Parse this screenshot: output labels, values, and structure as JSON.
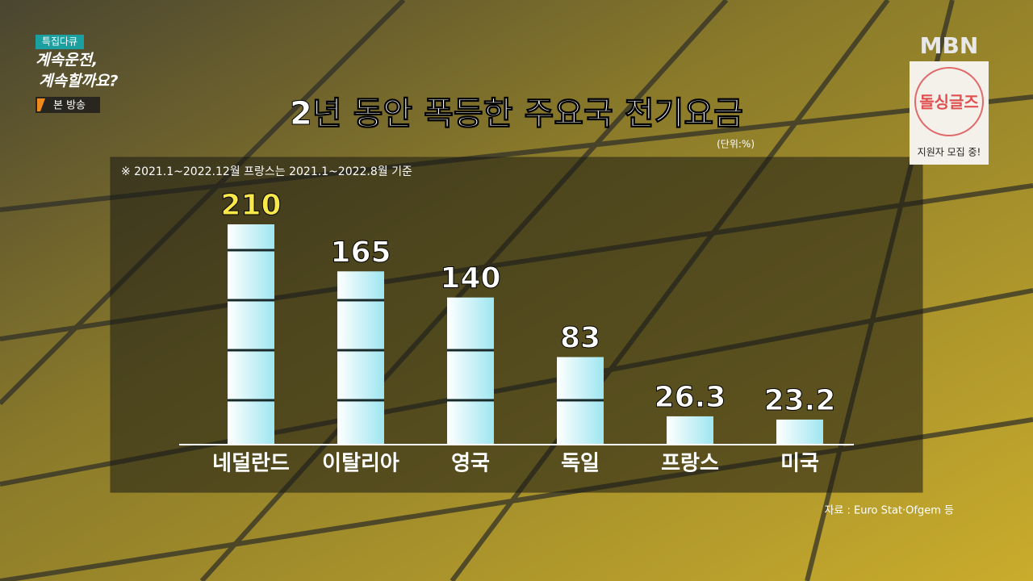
{
  "chart_data": {
    "type": "bar",
    "title": "2년 동안 폭등한 주요국 전기요금",
    "unit": "(단위:%)",
    "note": "※ 2021.1~2022.12월 프랑스는 2021.1~2022.8월 기준",
    "source": "자료 : Euro Stat·Ofgem 등",
    "categories": [
      "네덜란드",
      "이탈리아",
      "영국",
      "독일",
      "프랑스",
      "미국"
    ],
    "values": [
      210,
      165,
      140,
      83,
      26.3,
      23.2
    ],
    "color": "#c8f4f8",
    "value_label_colors": [
      "#f8e84a",
      "#ffffff",
      "#ffffff",
      "#ffffff",
      "#ffffff",
      "#ffffff"
    ]
  },
  "overlay": {
    "program_tag": "특집다큐",
    "program_line1": "계속운전,",
    "program_line2": "계속할까요?",
    "broadcast": "본 방송",
    "channel": "MBN",
    "promo_title": "돌싱글즈",
    "promo_text": "지원자 모집 중!"
  }
}
